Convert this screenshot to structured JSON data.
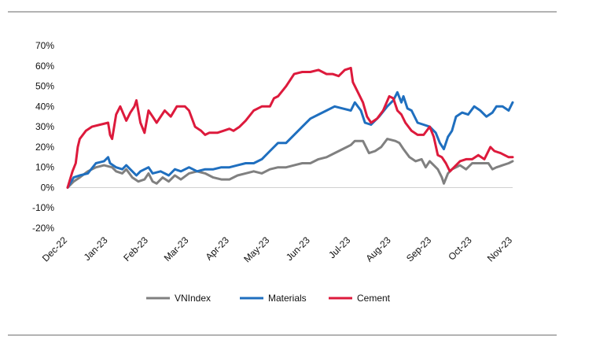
{
  "chart_data": {
    "type": "line",
    "title": "",
    "xlabel": "",
    "ylabel": "",
    "ylim": [
      -20,
      70
    ],
    "y_ticks": [
      "70%",
      "60%",
      "50%",
      "40%",
      "30%",
      "20%",
      "10%",
      "0%",
      "-10%",
      "-20%"
    ],
    "x_tick_labels": [
      "Dec-22",
      "Jan-23",
      "Feb-23",
      "Mar-23",
      "Apr-23",
      "May-23",
      "Jun-23",
      "Jul-23",
      "Aug-23",
      "Sep-23",
      "Oct-23",
      "Nov-23"
    ],
    "grid": false,
    "legend": "bottom-center",
    "x_unit": "months since Dec-22 (0 = Dec-22, 11 = Nov-23)",
    "series": [
      {
        "name": "VNIndex",
        "color": "#808080",
        "points": [
          [
            0,
            0
          ],
          [
            0.15,
            3
          ],
          [
            0.3,
            5
          ],
          [
            0.5,
            8
          ],
          [
            0.7,
            10
          ],
          [
            0.9,
            11
          ],
          [
            1.1,
            10
          ],
          [
            1.2,
            8
          ],
          [
            1.35,
            7
          ],
          [
            1.45,
            9
          ],
          [
            1.6,
            5
          ],
          [
            1.75,
            3
          ],
          [
            1.9,
            4
          ],
          [
            2.0,
            7
          ],
          [
            2.1,
            3
          ],
          [
            2.2,
            2
          ],
          [
            2.35,
            5
          ],
          [
            2.5,
            3
          ],
          [
            2.65,
            6
          ],
          [
            2.8,
            4
          ],
          [
            3.0,
            7
          ],
          [
            3.2,
            8
          ],
          [
            3.4,
            7
          ],
          [
            3.6,
            5
          ],
          [
            3.8,
            4
          ],
          [
            4.0,
            4
          ],
          [
            4.2,
            6
          ],
          [
            4.4,
            7
          ],
          [
            4.6,
            8
          ],
          [
            4.8,
            7
          ],
          [
            5.0,
            9
          ],
          [
            5.2,
            10
          ],
          [
            5.4,
            10
          ],
          [
            5.6,
            11
          ],
          [
            5.8,
            12
          ],
          [
            6.0,
            12
          ],
          [
            6.2,
            14
          ],
          [
            6.4,
            15
          ],
          [
            6.6,
            17
          ],
          [
            6.8,
            19
          ],
          [
            7.0,
            21
          ],
          [
            7.1,
            23
          ],
          [
            7.3,
            23
          ],
          [
            7.45,
            17
          ],
          [
            7.6,
            18
          ],
          [
            7.75,
            20
          ],
          [
            7.9,
            24
          ],
          [
            8.1,
            23
          ],
          [
            8.2,
            22
          ],
          [
            8.3,
            19
          ],
          [
            8.45,
            15
          ],
          [
            8.6,
            13
          ],
          [
            8.75,
            14
          ],
          [
            8.85,
            10
          ],
          [
            8.95,
            13
          ],
          [
            9.05,
            11
          ],
          [
            9.15,
            9
          ],
          [
            9.25,
            5
          ],
          [
            9.3,
            2
          ],
          [
            9.4,
            7
          ],
          [
            9.5,
            9
          ],
          [
            9.6,
            10
          ],
          [
            9.7,
            11
          ],
          [
            9.85,
            9
          ],
          [
            10.0,
            12
          ],
          [
            10.2,
            12
          ],
          [
            10.4,
            12
          ],
          [
            10.5,
            9
          ],
          [
            10.6,
            10
          ],
          [
            10.75,
            11
          ],
          [
            10.9,
            12
          ],
          [
            11.0,
            13
          ]
        ]
      },
      {
        "name": "Materials",
        "color": "#1f6fbf",
        "points": [
          [
            0,
            0
          ],
          [
            0.15,
            5
          ],
          [
            0.3,
            6
          ],
          [
            0.5,
            7
          ],
          [
            0.7,
            12
          ],
          [
            0.9,
            13
          ],
          [
            1.0,
            15
          ],
          [
            1.05,
            12
          ],
          [
            1.2,
            10
          ],
          [
            1.35,
            9
          ],
          [
            1.45,
            11
          ],
          [
            1.6,
            8
          ],
          [
            1.7,
            6
          ],
          [
            1.8,
            8
          ],
          [
            2.0,
            10
          ],
          [
            2.1,
            7
          ],
          [
            2.3,
            8
          ],
          [
            2.5,
            6
          ],
          [
            2.65,
            9
          ],
          [
            2.8,
            8
          ],
          [
            3.0,
            10
          ],
          [
            3.2,
            8
          ],
          [
            3.4,
            9
          ],
          [
            3.6,
            9
          ],
          [
            3.8,
            10
          ],
          [
            4.0,
            10
          ],
          [
            4.2,
            11
          ],
          [
            4.4,
            12
          ],
          [
            4.6,
            12
          ],
          [
            4.8,
            14
          ],
          [
            5.0,
            18
          ],
          [
            5.2,
            22
          ],
          [
            5.4,
            22
          ],
          [
            5.6,
            26
          ],
          [
            5.8,
            30
          ],
          [
            6.0,
            34
          ],
          [
            6.2,
            36
          ],
          [
            6.4,
            38
          ],
          [
            6.6,
            40
          ],
          [
            6.8,
            39
          ],
          [
            7.0,
            38
          ],
          [
            7.1,
            42
          ],
          [
            7.25,
            38
          ],
          [
            7.35,
            32
          ],
          [
            7.5,
            31
          ],
          [
            7.7,
            35
          ],
          [
            7.9,
            40
          ],
          [
            8.05,
            43
          ],
          [
            8.15,
            47
          ],
          [
            8.25,
            42
          ],
          [
            8.3,
            45
          ],
          [
            8.4,
            39
          ],
          [
            8.5,
            38
          ],
          [
            8.65,
            32
          ],
          [
            8.8,
            31
          ],
          [
            8.95,
            30
          ],
          [
            9.1,
            27
          ],
          [
            9.2,
            22
          ],
          [
            9.3,
            19
          ],
          [
            9.4,
            25
          ],
          [
            9.5,
            28
          ],
          [
            9.6,
            35
          ],
          [
            9.75,
            37
          ],
          [
            9.9,
            36
          ],
          [
            10.05,
            40
          ],
          [
            10.2,
            38
          ],
          [
            10.35,
            35
          ],
          [
            10.5,
            37
          ],
          [
            10.6,
            40
          ],
          [
            10.75,
            40
          ],
          [
            10.9,
            38
          ],
          [
            11.0,
            42
          ]
        ]
      },
      {
        "name": "Cement",
        "color": "#dd1a3c",
        "points": [
          [
            0,
            0
          ],
          [
            0.12,
            8
          ],
          [
            0.2,
            12
          ],
          [
            0.25,
            20
          ],
          [
            0.3,
            24
          ],
          [
            0.45,
            28
          ],
          [
            0.6,
            30
          ],
          [
            0.8,
            31
          ],
          [
            1.0,
            32
          ],
          [
            1.05,
            26
          ],
          [
            1.1,
            24
          ],
          [
            1.2,
            36
          ],
          [
            1.3,
            40
          ],
          [
            1.45,
            33
          ],
          [
            1.55,
            37
          ],
          [
            1.65,
            40
          ],
          [
            1.7,
            43
          ],
          [
            1.8,
            32
          ],
          [
            1.9,
            27
          ],
          [
            2.0,
            38
          ],
          [
            2.1,
            35
          ],
          [
            2.2,
            32
          ],
          [
            2.4,
            38
          ],
          [
            2.55,
            35
          ],
          [
            2.7,
            40
          ],
          [
            2.9,
            40
          ],
          [
            3.0,
            38
          ],
          [
            3.15,
            30
          ],
          [
            3.3,
            28
          ],
          [
            3.4,
            26
          ],
          [
            3.5,
            27
          ],
          [
            3.7,
            27
          ],
          [
            3.85,
            28
          ],
          [
            4.0,
            29
          ],
          [
            4.1,
            28
          ],
          [
            4.25,
            30
          ],
          [
            4.4,
            33
          ],
          [
            4.6,
            38
          ],
          [
            4.8,
            40
          ],
          [
            5.0,
            40
          ],
          [
            5.1,
            44
          ],
          [
            5.2,
            45
          ],
          [
            5.4,
            50
          ],
          [
            5.6,
            56
          ],
          [
            5.8,
            57
          ],
          [
            6.0,
            57
          ],
          [
            6.2,
            58
          ],
          [
            6.4,
            56
          ],
          [
            6.55,
            56
          ],
          [
            6.7,
            55
          ],
          [
            6.85,
            58
          ],
          [
            7.0,
            59
          ],
          [
            7.05,
            52
          ],
          [
            7.15,
            48
          ],
          [
            7.3,
            42
          ],
          [
            7.4,
            35
          ],
          [
            7.5,
            32
          ],
          [
            7.65,
            34
          ],
          [
            7.8,
            38
          ],
          [
            7.95,
            45
          ],
          [
            8.05,
            44
          ],
          [
            8.15,
            38
          ],
          [
            8.25,
            36
          ],
          [
            8.35,
            32
          ],
          [
            8.5,
            28
          ],
          [
            8.65,
            26
          ],
          [
            8.8,
            26
          ],
          [
            8.95,
            30
          ],
          [
            9.05,
            25
          ],
          [
            9.15,
            16
          ],
          [
            9.25,
            15
          ],
          [
            9.35,
            12
          ],
          [
            9.45,
            8
          ],
          [
            9.55,
            10
          ],
          [
            9.7,
            13
          ],
          [
            9.85,
            14
          ],
          [
            10.0,
            14
          ],
          [
            10.15,
            16
          ],
          [
            10.3,
            14
          ],
          [
            10.45,
            20
          ],
          [
            10.55,
            18
          ],
          [
            10.7,
            17
          ],
          [
            10.8,
            16
          ],
          [
            10.9,
            15
          ],
          [
            11.0,
            15
          ]
        ]
      }
    ]
  }
}
